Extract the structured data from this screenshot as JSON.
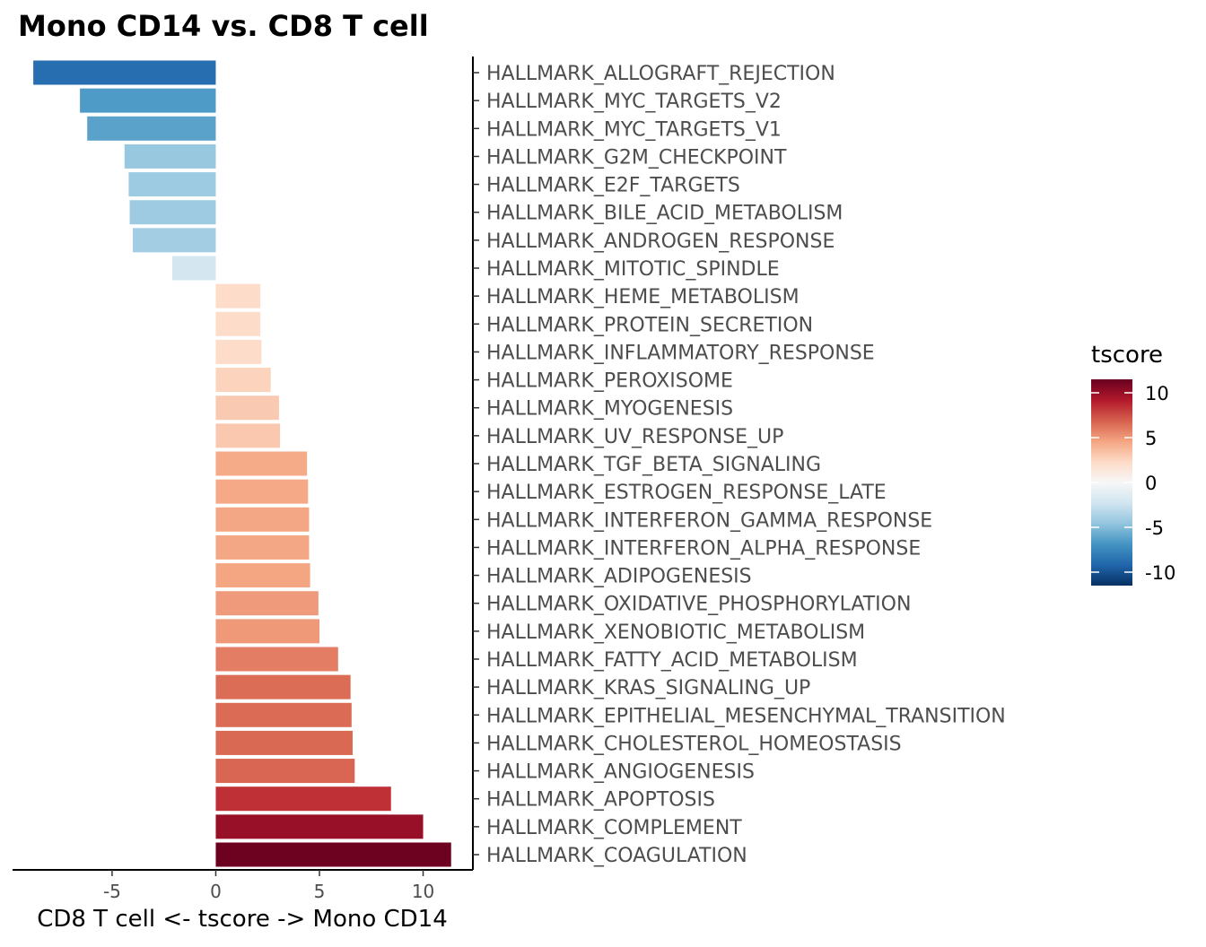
{
  "chart_data": {
    "type": "bar",
    "orientation": "horizontal",
    "title": "Mono CD14 vs. CD8 T cell",
    "xlabel": "CD8 T cell <- tscore -> Mono CD14",
    "ylabel": "",
    "xlim": [
      -9.8,
      12.4
    ],
    "xticks": [
      -5,
      0,
      5,
      10
    ],
    "xtick_labels": [
      "-5",
      "0",
      "5",
      "10"
    ],
    "grid": false,
    "categories": [
      "HALLMARK_ALLOGRAFT_REJECTION",
      "HALLMARK_MYC_TARGETS_V2",
      "HALLMARK_MYC_TARGETS_V1",
      "HALLMARK_G2M_CHECKPOINT",
      "HALLMARK_E2F_TARGETS",
      "HALLMARK_BILE_ACID_METABOLISM",
      "HALLMARK_ANDROGEN_RESPONSE",
      "HALLMARK_MITOTIC_SPINDLE",
      "HALLMARK_HEME_METABOLISM",
      "HALLMARK_PROTEIN_SECRETION",
      "HALLMARK_INFLAMMATORY_RESPONSE",
      "HALLMARK_PEROXISOME",
      "HALLMARK_MYOGENESIS",
      "HALLMARK_UV_RESPONSE_UP",
      "HALLMARK_TGF_BETA_SIGNALING",
      "HALLMARK_ESTROGEN_RESPONSE_LATE",
      "HALLMARK_INTERFERON_GAMMA_RESPONSE",
      "HALLMARK_INTERFERON_ALPHA_RESPONSE",
      "HALLMARK_ADIPOGENESIS",
      "HALLMARK_OXIDATIVE_PHOSPHORYLATION",
      "HALLMARK_XENOBIOTIC_METABOLISM",
      "HALLMARK_FATTY_ACID_METABOLISM",
      "HALLMARK_KRAS_SIGNALING_UP",
      "HALLMARK_EPITHELIAL_MESENCHYMAL_TRANSITION",
      "HALLMARK_CHOLESTEROL_HOMEOSTASIS",
      "HALLMARK_ANGIOGENESIS",
      "HALLMARK_APOPTOSIS",
      "HALLMARK_COMPLEMENT",
      "HALLMARK_COAGULATION"
    ],
    "values": [
      -8.8,
      -6.55,
      -6.2,
      -4.4,
      -4.2,
      -4.15,
      -4.0,
      -2.1,
      2.15,
      2.15,
      2.2,
      2.65,
      3.05,
      3.1,
      4.4,
      4.45,
      4.5,
      4.5,
      4.55,
      4.95,
      5.0,
      5.9,
      6.5,
      6.55,
      6.6,
      6.7,
      8.45,
      10.0,
      11.35
    ],
    "legend": {
      "title": "tscore",
      "position": "right",
      "range": [
        -11.5,
        11.5
      ],
      "ticks": [
        10,
        5,
        0,
        -5,
        -10
      ],
      "tick_labels": [
        "10",
        "5",
        "0",
        "-5",
        "-10"
      ],
      "palette": [
        "#053061",
        "#2166ac",
        "#4393c3",
        "#92c5de",
        "#d1e5f0",
        "#f7f7f7",
        "#fddbc7",
        "#f4a582",
        "#d6604d",
        "#b2182b",
        "#67001f"
      ]
    }
  }
}
